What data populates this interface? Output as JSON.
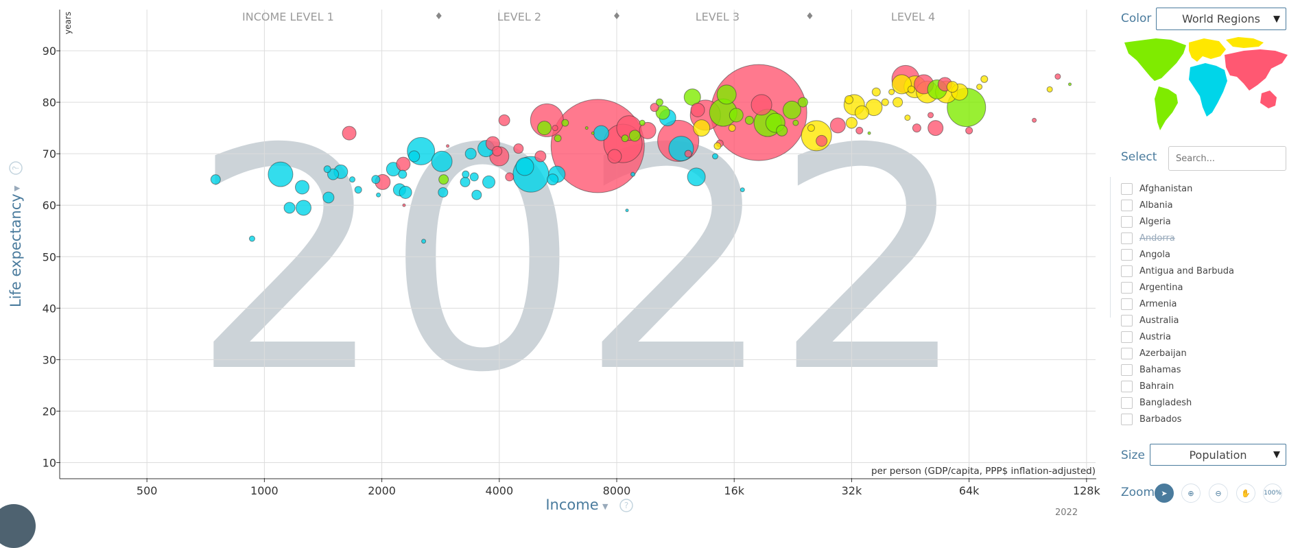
{
  "chart_data": {
    "type": "scatter",
    "year": "2022",
    "xlabel": "Income",
    "ylabel": "Life expectancy",
    "y_unit": "years",
    "x_note": "per person (GDP/capita, PPP$ inflation-adjusted)",
    "x_scale": "log",
    "xlim": [
      300,
      135000
    ],
    "ylim": [
      7,
      98
    ],
    "x_ticks": [
      {
        "v": 500,
        "label": "500"
      },
      {
        "v": 1000,
        "label": "1000"
      },
      {
        "v": 2000,
        "label": "2000"
      },
      {
        "v": 4000,
        "label": "4000"
      },
      {
        "v": 8000,
        "label": "8000"
      },
      {
        "v": 16000,
        "label": "16k"
      },
      {
        "v": 32000,
        "label": "32k"
      },
      {
        "v": 64000,
        "label": "64k"
      },
      {
        "v": 128000,
        "label": "128k"
      }
    ],
    "y_ticks": [
      10,
      20,
      30,
      40,
      50,
      60,
      70,
      80,
      90
    ],
    "grid": true,
    "income_levels": [
      {
        "label": "INCOME LEVEL 1",
        "x": 1150
      },
      {
        "label": "LEVEL 2",
        "x": 4500
      },
      {
        "label": "LEVEL 3",
        "x": 14500
      },
      {
        "label": "LEVEL 4",
        "x": 46000
      }
    ],
    "level_markers": [
      2800,
      8000,
      25000
    ],
    "regions": {
      "africa": "#00d5e9",
      "asia": "#ff5872",
      "americas": "#7feb00",
      "europe": "#ffe700"
    },
    "points": [
      {
        "x": 750,
        "y": 65,
        "r": 7,
        "region": "africa"
      },
      {
        "x": 930,
        "y": 53.5,
        "r": 4,
        "region": "africa"
      },
      {
        "x": 1100,
        "y": 66,
        "r": 18,
        "region": "africa"
      },
      {
        "x": 1160,
        "y": 59.5,
        "r": 8,
        "region": "africa"
      },
      {
        "x": 1250,
        "y": 63.5,
        "r": 10,
        "region": "africa"
      },
      {
        "x": 1260,
        "y": 59.5,
        "r": 11,
        "region": "africa"
      },
      {
        "x": 1460,
        "y": 61.5,
        "r": 8,
        "region": "africa"
      },
      {
        "x": 1450,
        "y": 67,
        "r": 5,
        "region": "africa"
      },
      {
        "x": 1500,
        "y": 66,
        "r": 8,
        "region": "africa"
      },
      {
        "x": 1570,
        "y": 66.5,
        "r": 10,
        "region": "africa"
      },
      {
        "x": 1680,
        "y": 65,
        "r": 4,
        "region": "africa"
      },
      {
        "x": 1740,
        "y": 63,
        "r": 5,
        "region": "africa"
      },
      {
        "x": 1650,
        "y": 74,
        "r": 10,
        "region": "asia"
      },
      {
        "x": 1930,
        "y": 65,
        "r": 6,
        "region": "africa"
      },
      {
        "x": 1960,
        "y": 62,
        "r": 3,
        "region": "africa"
      },
      {
        "x": 2010,
        "y": 64.5,
        "r": 11,
        "region": "asia"
      },
      {
        "x": 2140,
        "y": 67,
        "r": 10,
        "region": "africa"
      },
      {
        "x": 2220,
        "y": 63,
        "r": 9,
        "region": "africa"
      },
      {
        "x": 2260,
        "y": 66,
        "r": 6,
        "region": "africa"
      },
      {
        "x": 2270,
        "y": 68,
        "r": 10,
        "region": "asia"
      },
      {
        "x": 2300,
        "y": 62.5,
        "r": 9,
        "region": "africa"
      },
      {
        "x": 2280,
        "y": 60,
        "r": 2,
        "region": "asia"
      },
      {
        "x": 2420,
        "y": 69.5,
        "r": 8,
        "region": "africa"
      },
      {
        "x": 2520,
        "y": 70.5,
        "r": 20,
        "region": "africa"
      },
      {
        "x": 2560,
        "y": 53,
        "r": 3,
        "region": "africa"
      },
      {
        "x": 2850,
        "y": 68.5,
        "r": 15,
        "region": "africa"
      },
      {
        "x": 2950,
        "y": 71.5,
        "r": 2,
        "region": "asia"
      },
      {
        "x": 2880,
        "y": 65,
        "r": 7,
        "region": "americas"
      },
      {
        "x": 2870,
        "y": 62.5,
        "r": 7,
        "region": "africa"
      },
      {
        "x": 3280,
        "y": 66,
        "r": 5,
        "region": "africa"
      },
      {
        "x": 3270,
        "y": 64.5,
        "r": 7,
        "region": "africa"
      },
      {
        "x": 3450,
        "y": 65.5,
        "r": 6,
        "region": "africa"
      },
      {
        "x": 3380,
        "y": 70,
        "r": 8,
        "region": "africa"
      },
      {
        "x": 3500,
        "y": 62,
        "r": 7,
        "region": "africa"
      },
      {
        "x": 3700,
        "y": 71,
        "r": 12,
        "region": "africa"
      },
      {
        "x": 3760,
        "y": 64.5,
        "r": 9,
        "region": "africa"
      },
      {
        "x": 3850,
        "y": 72,
        "r": 10,
        "region": "asia"
      },
      {
        "x": 3950,
        "y": 70.5,
        "r": 7,
        "region": "asia"
      },
      {
        "x": 4120,
        "y": 76.5,
        "r": 8,
        "region": "asia"
      },
      {
        "x": 4000,
        "y": 69.5,
        "r": 14,
        "region": "asia"
      },
      {
        "x": 4250,
        "y": 65.5,
        "r": 6,
        "region": "asia"
      },
      {
        "x": 4480,
        "y": 71,
        "r": 7,
        "region": "asia"
      },
      {
        "x": 4820,
        "y": 66,
        "r": 26,
        "region": "africa"
      },
      {
        "x": 4650,
        "y": 67.5,
        "r": 13,
        "region": "africa"
      },
      {
        "x": 5100,
        "y": 69.5,
        "r": 8,
        "region": "asia"
      },
      {
        "x": 5300,
        "y": 76.5,
        "r": 24,
        "region": "asia"
      },
      {
        "x": 5220,
        "y": 75,
        "r": 10,
        "region": "americas"
      },
      {
        "x": 5620,
        "y": 66,
        "r": 12,
        "region": "africa"
      },
      {
        "x": 5480,
        "y": 65,
        "r": 8,
        "region": "africa"
      },
      {
        "x": 5560,
        "y": 75,
        "r": 4,
        "region": "asia"
      },
      {
        "x": 5900,
        "y": 76,
        "r": 5,
        "region": "americas"
      },
      {
        "x": 5650,
        "y": 73,
        "r": 5,
        "region": "americas"
      },
      {
        "x": 6700,
        "y": 75,
        "r": 2,
        "region": "americas"
      },
      {
        "x": 6950,
        "y": 74,
        "r": 2,
        "region": "americas"
      },
      {
        "x": 7150,
        "y": 71.5,
        "r": 68,
        "region": "asia"
      },
      {
        "x": 7300,
        "y": 74,
        "r": 11,
        "region": "africa"
      },
      {
        "x": 7900,
        "y": 69.5,
        "r": 10,
        "region": "asia"
      },
      {
        "x": 8300,
        "y": 72,
        "r": 28,
        "region": "asia"
      },
      {
        "x": 8600,
        "y": 75,
        "r": 18,
        "region": "asia"
      },
      {
        "x": 8400,
        "y": 73,
        "r": 5,
        "region": "americas"
      },
      {
        "x": 8900,
        "y": 73.5,
        "r": 8,
        "region": "americas"
      },
      {
        "x": 8500,
        "y": 59,
        "r": 2,
        "region": "africa"
      },
      {
        "x": 8800,
        "y": 66,
        "r": 3,
        "region": "africa"
      },
      {
        "x": 9300,
        "y": 76,
        "r": 4,
        "region": "americas"
      },
      {
        "x": 9600,
        "y": 74.5,
        "r": 12,
        "region": "asia"
      },
      {
        "x": 10000,
        "y": 79,
        "r": 6,
        "region": "asia"
      },
      {
        "x": 10300,
        "y": 80,
        "r": 5,
        "region": "americas"
      },
      {
        "x": 10500,
        "y": 78,
        "r": 10,
        "region": "americas"
      },
      {
        "x": 10800,
        "y": 77,
        "r": 12,
        "region": "africa"
      },
      {
        "x": 11500,
        "y": 72.5,
        "r": 30,
        "region": "asia"
      },
      {
        "x": 12200,
        "y": 70,
        "r": 5,
        "region": "asia"
      },
      {
        "x": 11700,
        "y": 71,
        "r": 18,
        "region": "africa"
      },
      {
        "x": 12500,
        "y": 81,
        "r": 12,
        "region": "americas"
      },
      {
        "x": 12900,
        "y": 78.5,
        "r": 10,
        "region": "asia"
      },
      {
        "x": 13200,
        "y": 75,
        "r": 12,
        "region": "europe"
      },
      {
        "x": 12800,
        "y": 65.5,
        "r": 13,
        "region": "africa"
      },
      {
        "x": 13500,
        "y": 77.5,
        "r": 22,
        "region": "asia"
      },
      {
        "x": 14300,
        "y": 69.5,
        "r": 4,
        "region": "africa"
      },
      {
        "x": 14700,
        "y": 72,
        "r": 5,
        "region": "asia"
      },
      {
        "x": 14500,
        "y": 71.5,
        "r": 5,
        "region": "europe"
      },
      {
        "x": 15000,
        "y": 78,
        "r": 20,
        "region": "americas"
      },
      {
        "x": 15300,
        "y": 81.5,
        "r": 14,
        "region": "americas"
      },
      {
        "x": 15800,
        "y": 75,
        "r": 5,
        "region": "europe"
      },
      {
        "x": 16200,
        "y": 77.5,
        "r": 10,
        "region": "americas"
      },
      {
        "x": 16800,
        "y": 63,
        "r": 3,
        "region": "africa"
      },
      {
        "x": 17500,
        "y": 76.5,
        "r": 6,
        "region": "americas"
      },
      {
        "x": 18500,
        "y": 78,
        "r": 70,
        "region": "asia"
      },
      {
        "x": 18800,
        "y": 79.5,
        "r": 15,
        "region": "asia"
      },
      {
        "x": 19500,
        "y": 76,
        "r": 20,
        "region": "americas"
      },
      {
        "x": 20400,
        "y": 76,
        "r": 14,
        "region": "americas"
      },
      {
        "x": 21200,
        "y": 74.5,
        "r": 8,
        "region": "americas"
      },
      {
        "x": 22500,
        "y": 78.5,
        "r": 13,
        "region": "americas"
      },
      {
        "x": 23000,
        "y": 76,
        "r": 4,
        "region": "americas"
      },
      {
        "x": 24000,
        "y": 80,
        "r": 7,
        "region": "americas"
      },
      {
        "x": 26000,
        "y": 73.5,
        "r": 22,
        "region": "europe"
      },
      {
        "x": 26800,
        "y": 72.5,
        "r": 8,
        "region": "asia"
      },
      {
        "x": 25200,
        "y": 75,
        "r": 5,
        "region": "europe"
      },
      {
        "x": 29500,
        "y": 75.5,
        "r": 11,
        "region": "asia"
      },
      {
        "x": 31500,
        "y": 80.5,
        "r": 6,
        "region": "europe"
      },
      {
        "x": 32500,
        "y": 79.5,
        "r": 15,
        "region": "europe"
      },
      {
        "x": 32000,
        "y": 76,
        "r": 8,
        "region": "europe"
      },
      {
        "x": 33500,
        "y": 74.5,
        "r": 5,
        "region": "asia"
      },
      {
        "x": 34000,
        "y": 78,
        "r": 10,
        "region": "europe"
      },
      {
        "x": 35500,
        "y": 74,
        "r": 2,
        "region": "americas"
      },
      {
        "x": 36500,
        "y": 79,
        "r": 12,
        "region": "europe"
      },
      {
        "x": 37000,
        "y": 82,
        "r": 6,
        "region": "europe"
      },
      {
        "x": 39000,
        "y": 80,
        "r": 5,
        "region": "europe"
      },
      {
        "x": 40500,
        "y": 82,
        "r": 4,
        "region": "europe"
      },
      {
        "x": 42000,
        "y": 80,
        "r": 7,
        "region": "europe"
      },
      {
        "x": 43000,
        "y": 83.5,
        "r": 14,
        "region": "europe"
      },
      {
        "x": 44000,
        "y": 84.5,
        "r": 20,
        "region": "asia"
      },
      {
        "x": 44500,
        "y": 77,
        "r": 4,
        "region": "europe"
      },
      {
        "x": 45500,
        "y": 82.5,
        "r": 5,
        "region": "europe"
      },
      {
        "x": 46500,
        "y": 83,
        "r": 16,
        "region": "europe"
      },
      {
        "x": 47000,
        "y": 75,
        "r": 6,
        "region": "asia"
      },
      {
        "x": 49000,
        "y": 83.5,
        "r": 14,
        "region": "asia"
      },
      {
        "x": 50000,
        "y": 82,
        "r": 16,
        "region": "europe"
      },
      {
        "x": 51000,
        "y": 77.5,
        "r": 4,
        "region": "asia"
      },
      {
        "x": 53000,
        "y": 82.5,
        "r": 14,
        "region": "americas"
      },
      {
        "x": 52500,
        "y": 75,
        "r": 11,
        "region": "asia"
      },
      {
        "x": 55500,
        "y": 83.5,
        "r": 10,
        "region": "asia"
      },
      {
        "x": 56000,
        "y": 82,
        "r": 16,
        "region": "europe"
      },
      {
        "x": 58000,
        "y": 83,
        "r": 8,
        "region": "europe"
      },
      {
        "x": 60500,
        "y": 82,
        "r": 12,
        "region": "europe"
      },
      {
        "x": 63000,
        "y": 79,
        "r": 28,
        "region": "americas"
      },
      {
        "x": 64000,
        "y": 74.5,
        "r": 5,
        "region": "asia"
      },
      {
        "x": 68000,
        "y": 83,
        "r": 4,
        "region": "europe"
      },
      {
        "x": 70000,
        "y": 84.5,
        "r": 5,
        "region": "europe"
      },
      {
        "x": 94000,
        "y": 76.5,
        "r": 3,
        "region": "asia"
      },
      {
        "x": 103000,
        "y": 82.5,
        "r": 4,
        "region": "europe"
      },
      {
        "x": 108000,
        "y": 85,
        "r": 4,
        "region": "asia"
      },
      {
        "x": 116000,
        "y": 83.5,
        "r": 2,
        "region": "americas"
      }
    ]
  },
  "panel": {
    "color_label": "Color",
    "color_value": "World Regions",
    "select_label": "Select",
    "search_placeholder": "Search...",
    "countries": [
      {
        "name": "Afghanistan",
        "disabled": false
      },
      {
        "name": "Albania",
        "disabled": false
      },
      {
        "name": "Algeria",
        "disabled": false
      },
      {
        "name": "Andorra",
        "disabled": true
      },
      {
        "name": "Angola",
        "disabled": false
      },
      {
        "name": "Antigua and Barbuda",
        "disabled": false
      },
      {
        "name": "Argentina",
        "disabled": false
      },
      {
        "name": "Armenia",
        "disabled": false
      },
      {
        "name": "Australia",
        "disabled": false
      },
      {
        "name": "Austria",
        "disabled": false
      },
      {
        "name": "Azerbaijan",
        "disabled": false
      },
      {
        "name": "Bahamas",
        "disabled": false
      },
      {
        "name": "Bahrain",
        "disabled": false
      },
      {
        "name": "Bangladesh",
        "disabled": false
      },
      {
        "name": "Barbados",
        "disabled": false
      }
    ],
    "size_label": "Size",
    "size_value": "Population",
    "zoom_label": "Zoom",
    "zoom_tools": [
      {
        "icon": "cursor-icon",
        "active": true
      },
      {
        "icon": "zoom-in-icon",
        "active": false
      },
      {
        "icon": "zoom-out-icon",
        "active": false
      },
      {
        "icon": "hand-pan-icon",
        "active": false
      },
      {
        "icon": "reset-zoom-icon",
        "active": false,
        "text": "100%"
      }
    ],
    "year_small": "2022"
  }
}
